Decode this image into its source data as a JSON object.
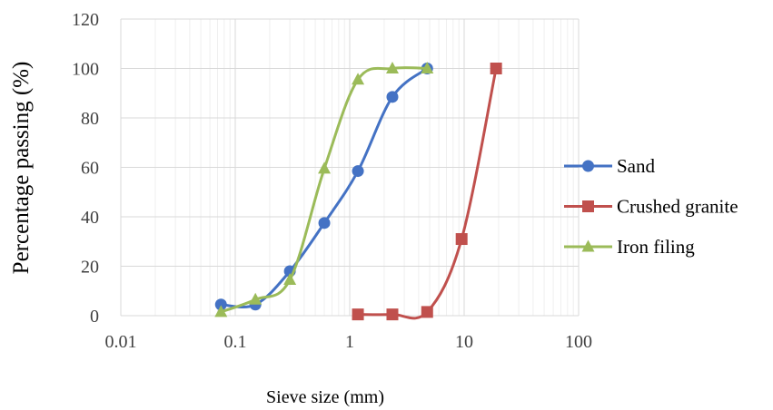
{
  "chart_data": {
    "type": "scatter",
    "title": "",
    "xlabel": "Sieve size (mm)",
    "ylabel": "Percentage passing (%)",
    "x_scale": "log",
    "xlim": [
      0.01,
      100
    ],
    "ylim": [
      0,
      120
    ],
    "x_ticks": [
      "0.01",
      "0.1",
      "1",
      "10",
      "100"
    ],
    "y_ticks": [
      "0",
      "20",
      "40",
      "60",
      "80",
      "100",
      "120"
    ],
    "grid": true,
    "legend_position": "right",
    "series": [
      {
        "name": "Sand",
        "color": "#4472c4",
        "marker": "circle",
        "x": [
          0.075,
          0.15,
          0.3,
          0.6,
          1.18,
          2.36,
          4.75
        ],
        "y": [
          4.5,
          4.5,
          18,
          37.5,
          58.5,
          88.5,
          100
        ]
      },
      {
        "name": "Crushed granite",
        "color": "#c0504d",
        "marker": "square",
        "x": [
          1.18,
          2.36,
          4.75,
          9.5,
          19
        ],
        "y": [
          0.5,
          0.5,
          1.5,
          31,
          100
        ]
      },
      {
        "name": "Iron filing",
        "color": "#9bbb59",
        "marker": "triangle",
        "x": [
          0.075,
          0.15,
          0.3,
          0.6,
          1.18,
          2.36,
          4.75
        ],
        "y": [
          1.5,
          6.5,
          14.5,
          59.5,
          95.5,
          100,
          100
        ]
      }
    ]
  }
}
